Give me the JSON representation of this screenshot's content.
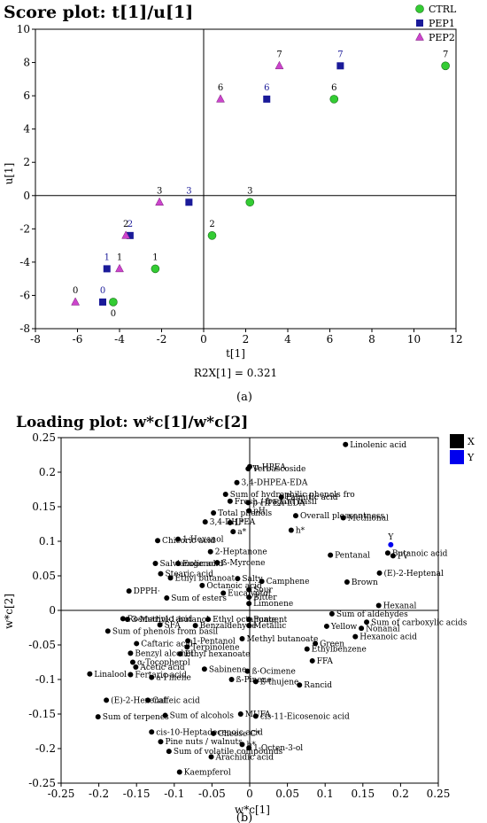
{
  "chart_data": [
    {
      "type": "scatter",
      "title": "Score plot: t[1]/u[1]",
      "xlabel": "t[1]",
      "ylabel": "u[1]",
      "footnote": "R2X[1] = 0.321",
      "caption": "(a)",
      "xlim": [
        -8,
        12
      ],
      "ylim": [
        -8,
        10
      ],
      "xticks": [
        "-8",
        "-6",
        "-4",
        "-2",
        "0",
        "2",
        "4",
        "6",
        "8",
        "10",
        "12"
      ],
      "yticks": [
        "-8",
        "-6",
        "-4",
        "-2",
        "0",
        "2",
        "4",
        "6",
        "8",
        "10"
      ],
      "legend_position": "top-right",
      "series": [
        {
          "name": "CTRL",
          "color": "#33cc33",
          "marker": "circle",
          "label_color": "#000000",
          "points": [
            {
              "label": "0",
              "x": -4.3,
              "y": -6.4
            },
            {
              "label": "1",
              "x": -2.3,
              "y": -4.4
            },
            {
              "label": "2",
              "x": 0.4,
              "y": -2.4
            },
            {
              "label": "3",
              "x": 2.2,
              "y": -0.4
            },
            {
              "label": "6",
              "x": 6.2,
              "y": 5.8
            },
            {
              "label": "7",
              "x": 11.5,
              "y": 7.8
            }
          ]
        },
        {
          "name": "PEP1",
          "color": "#1a1a99",
          "marker": "square",
          "label_color": "#1a1a99",
          "points": [
            {
              "label": "0",
              "x": -4.8,
              "y": -6.4
            },
            {
              "label": "1",
              "x": -4.6,
              "y": -4.4
            },
            {
              "label": "2",
              "x": -3.5,
              "y": -2.4
            },
            {
              "label": "3",
              "x": -0.7,
              "y": -0.4
            },
            {
              "label": "6",
              "x": 3.0,
              "y": 5.8
            },
            {
              "label": "7",
              "x": 6.5,
              "y": 7.8
            }
          ]
        },
        {
          "name": "PEP2",
          "color": "#cc44cc",
          "marker": "triangle",
          "label_color": "#000000",
          "points": [
            {
              "label": "0",
              "x": -6.1,
              "y": -6.4
            },
            {
              "label": "1",
              "x": -4.0,
              "y": -4.4
            },
            {
              "label": "2",
              "x": -3.7,
              "y": -2.4
            },
            {
              "label": "3",
              "x": -2.1,
              "y": -0.4
            },
            {
              "label": "6",
              "x": 0.8,
              "y": 5.8
            },
            {
              "label": "7",
              "x": 3.6,
              "y": 7.8
            }
          ]
        }
      ]
    },
    {
      "type": "scatter",
      "title": "Loading plot: w*c[1]/w*c[2]",
      "xlabel": "w*c[1]",
      "ylabel": "w*c[2]",
      "caption": "(b)",
      "xlim": [
        -0.25,
        0.25
      ],
      "ylim": [
        -0.25,
        0.25
      ],
      "xticks": [
        "-0.25",
        "-0.2",
        "-0.15",
        "-0.1",
        "-0.05",
        "0",
        "0.05",
        "0.1",
        "0.15",
        "0.2",
        "0.25"
      ],
      "yticks": [
        "-0.25",
        "-0.2",
        "-0.15",
        "-0.1",
        "-0.05",
        "0",
        "0.05",
        "0.1",
        "0.15",
        "0.2",
        "0.25"
      ],
      "legend_position": "top-right",
      "legend": [
        {
          "name": "X",
          "color": "#000000"
        },
        {
          "name": "Y",
          "color": "#0000ee"
        }
      ],
      "points": [
        {
          "label": "Linolenic acid",
          "x": 0.127,
          "y": 0.24
        },
        {
          "label": "Verbascoside",
          "x": -0.002,
          "y": 0.205
        },
        {
          "label": "p-HPEA",
          "x": 0.0,
          "y": 0.208
        },
        {
          "label": "3,4-DHPEA-EDA",
          "x": -0.017,
          "y": 0.185
        },
        {
          "label": "Palmitic acid",
          "x": 0.042,
          "y": 0.164
        },
        {
          "label": "Sum of hydrophilic phenols fro",
          "x": -0.032,
          "y": 0.168
        },
        {
          "label": "Fresh / fragant basil",
          "x": -0.026,
          "y": 0.158
        },
        {
          "label": "p-HPEA-EDA",
          "x": -0.002,
          "y": 0.156
        },
        {
          "label": "Total phenols",
          "x": -0.048,
          "y": 0.141
        },
        {
          "label": "pH",
          "x": -0.001,
          "y": 0.144
        },
        {
          "label": "Overall pleasantness",
          "x": 0.061,
          "y": 0.137
        },
        {
          "label": "Methional",
          "x": 0.124,
          "y": 0.134
        },
        {
          "label": "3,4-DHPEA",
          "x": -0.059,
          "y": 0.128
        },
        {
          "label": "L*",
          "x": -0.026,
          "y": 0.127
        },
        {
          "label": "h*",
          "x": 0.055,
          "y": 0.116
        },
        {
          "label": "a*",
          "x": -0.022,
          "y": 0.114
        },
        {
          "label": "Chicoric acid",
          "x": -0.122,
          "y": 0.101
        },
        {
          "label": "1-Hexanol",
          "x": -0.095,
          "y": 0.103
        },
        {
          "label": "Y",
          "x": 0.187,
          "y": 0.095,
          "color": "#0000ee"
        },
        {
          "label": "2-Heptanone",
          "x": -0.052,
          "y": 0.085
        },
        {
          "label": "Butanoic acid",
          "x": 0.183,
          "y": 0.083
        },
        {
          "label": "Pentanal",
          "x": 0.107,
          "y": 0.08
        },
        {
          "label": "PV",
          "x": 0.19,
          "y": 0.079
        },
        {
          "label": "Salvianolic acid",
          "x": -0.125,
          "y": 0.068
        },
        {
          "label": "Eugenol",
          "x": -0.095,
          "y": 0.068
        },
        {
          "label": "ß-Myrcene",
          "x": -0.043,
          "y": 0.069
        },
        {
          "label": "(E)-2-Heptenal",
          "x": 0.172,
          "y": 0.054
        },
        {
          "label": "Stearic acid",
          "x": -0.118,
          "y": 0.053
        },
        {
          "label": "Ethyl butanoate",
          "x": -0.105,
          "y": 0.047
        },
        {
          "label": "Salty",
          "x": -0.016,
          "y": 0.046
        },
        {
          "label": "Camphene",
          "x": 0.016,
          "y": 0.042
        },
        {
          "label": "Brown",
          "x": 0.129,
          "y": 0.041
        },
        {
          "label": "Octanoic acid",
          "x": -0.063,
          "y": 0.036
        },
        {
          "label": "Sour",
          "x": -0.001,
          "y": 0.03
        },
        {
          "label": "DPPH·",
          "x": -0.16,
          "y": 0.028
        },
        {
          "label": "Eucalyptol",
          "x": -0.035,
          "y": 0.025
        },
        {
          "label": "Bitter",
          "x": -0.001,
          "y": 0.019
        },
        {
          "label": "Sum of esters",
          "x": -0.11,
          "y": 0.018
        },
        {
          "label": "Limonene",
          "x": -0.001,
          "y": 0.01
        },
        {
          "label": "Sum of aldehydes",
          "x": 0.109,
          "y": -0.005
        },
        {
          "label": "Hexanal",
          "x": 0.171,
          "y": 0.007
        },
        {
          "label": "Rosmarinic acid",
          "x": -0.168,
          "y": -0.012
        },
        {
          "label": "3-Methyl-1-butanol",
          "x": -0.162,
          "y": -0.013
        },
        {
          "label": "Ethyl octanoate",
          "x": -0.055,
          "y": -0.013
        },
        {
          "label": "Pungent",
          "x": -0.001,
          "y": -0.013
        },
        {
          "label": "Sum of carboxylic acids",
          "x": 0.155,
          "y": -0.017
        },
        {
          "label": "Yellow",
          "x": 0.102,
          "y": -0.023
        },
        {
          "label": "Nonanal",
          "x": 0.148,
          "y": -0.026
        },
        {
          "label": "SFA",
          "x": -0.119,
          "y": -0.021
        },
        {
          "label": "Benzaldehyde",
          "x": -0.072,
          "y": -0.022
        },
        {
          "label": "Metallic",
          "x": -0.001,
          "y": -0.022
        },
        {
          "label": "Sum of phenols from basil",
          "x": -0.188,
          "y": -0.03
        },
        {
          "label": "Hexanoic acid",
          "x": 0.14,
          "y": -0.038
        },
        {
          "label": "Methyl butanoate",
          "x": -0.01,
          "y": -0.041
        },
        {
          "label": "1-Pentanol",
          "x": -0.082,
          "y": -0.044
        },
        {
          "label": "Caftaric acid",
          "x": -0.15,
          "y": -0.048
        },
        {
          "label": "Green",
          "x": 0.087,
          "y": -0.048
        },
        {
          "label": "Terpinolene",
          "x": -0.083,
          "y": -0.053
        },
        {
          "label": "Ethylbenzene",
          "x": 0.076,
          "y": -0.056
        },
        {
          "label": "Benzyl alcohol",
          "x": -0.158,
          "y": -0.062
        },
        {
          "label": "Ethyl hexanoate",
          "x": -0.092,
          "y": -0.063
        },
        {
          "label": "FFA",
          "x": 0.083,
          "y": -0.073
        },
        {
          "label": "α-Tocopherol",
          "x": -0.155,
          "y": -0.075
        },
        {
          "label": "Acetic acid",
          "x": -0.151,
          "y": -0.082
        },
        {
          "label": "Sabinene",
          "x": -0.06,
          "y": -0.085
        },
        {
          "label": "ß-Ocimene",
          "x": -0.003,
          "y": -0.088
        },
        {
          "label": "Linalool",
          "x": -0.212,
          "y": -0.092
        },
        {
          "label": "Fertaric acid",
          "x": -0.158,
          "y": -0.093
        },
        {
          "label": "a-Pinene",
          "x": -0.13,
          "y": -0.097
        },
        {
          "label": "ß-thujene",
          "x": 0.008,
          "y": -0.103
        },
        {
          "label": "ß-Pinene",
          "x": -0.024,
          "y": -0.1
        },
        {
          "label": "Rancid",
          "x": 0.066,
          "y": -0.108
        },
        {
          "label": "(E)-2-Hexenal",
          "x": -0.19,
          "y": -0.13
        },
        {
          "label": "Caffeic acid",
          "x": -0.135,
          "y": -0.13
        },
        {
          "label": "Sum of terpenes",
          "x": -0.201,
          "y": -0.154
        },
        {
          "label": "Sum of alcohols",
          "x": -0.112,
          "y": -0.152
        },
        {
          "label": "MUFA",
          "x": -0.012,
          "y": -0.15
        },
        {
          "label": "cis-11-Eicosenoic acid",
          "x": 0.008,
          "y": -0.153
        },
        {
          "label": "cis-10-Heptadecenoic acid",
          "x": -0.13,
          "y": -0.176
        },
        {
          "label": "Cheese C*",
          "x": -0.048,
          "y": -0.178
        },
        {
          "label": "Pine nuts / walnuts",
          "x": -0.118,
          "y": -0.19
        },
        {
          "label": "1-Octen-3-ol",
          "x": -0.001,
          "y": -0.199
        },
        {
          "label": "b*",
          "x": -0.01,
          "y": -0.194
        },
        {
          "label": "Sum of volatile compounds",
          "x": -0.107,
          "y": -0.204
        },
        {
          "label": "Arachidic acid",
          "x": -0.051,
          "y": -0.212
        },
        {
          "label": "Kaempferol",
          "x": -0.093,
          "y": -0.234
        }
      ]
    }
  ]
}
